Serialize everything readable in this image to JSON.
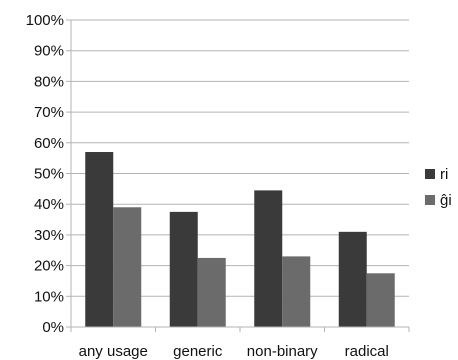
{
  "chart_data": {
    "type": "bar",
    "categories": [
      "any usage",
      "generic",
      "non-binary",
      "radical"
    ],
    "series": [
      {
        "name": "ri",
        "values": [
          57,
          37.5,
          44.5,
          31
        ],
        "color": "#3a3a3a"
      },
      {
        "name": "ĝi",
        "values": [
          39,
          22.5,
          23,
          17.5
        ],
        "color": "#6b6b6b"
      }
    ],
    "y_ticks": [
      "0%",
      "10%",
      "20%",
      "30%",
      "40%",
      "50%",
      "60%",
      "70%",
      "80%",
      "90%",
      "100%"
    ],
    "ylim": [
      0,
      100
    ],
    "y_unit": "percent",
    "grid": true,
    "legend_position": "right",
    "title": "",
    "xlabel": "",
    "ylabel": ""
  }
}
